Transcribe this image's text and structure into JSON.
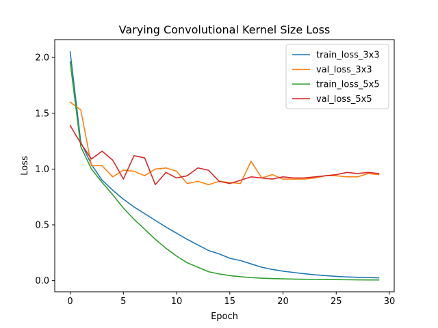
{
  "chart_data": {
    "type": "line",
    "title": "Varying Convolutional Kernel Size Loss",
    "xlabel": "Epoch",
    "ylabel": "Loss",
    "xlim": [
      -1.45,
      30.45
    ],
    "ylim": [
      -0.1,
      2.16
    ],
    "xticks": [
      0,
      5,
      10,
      15,
      20,
      25,
      30
    ],
    "xtick_labels": [
      "0",
      "5",
      "10",
      "15",
      "20",
      "25",
      "30"
    ],
    "yticks": [
      0.0,
      0.5,
      1.0,
      1.5,
      2.0
    ],
    "ytick_labels": [
      "0.0",
      "0.5",
      "1.0",
      "1.5",
      "2.0"
    ],
    "grid": false,
    "legend_position": "top-right",
    "x": [
      0,
      1,
      2,
      3,
      4,
      5,
      6,
      7,
      8,
      9,
      10,
      11,
      12,
      13,
      14,
      15,
      16,
      17,
      18,
      19,
      20,
      21,
      22,
      23,
      24,
      25,
      26,
      27,
      28,
      29
    ],
    "series": [
      {
        "name": "train_loss_3x3",
        "color": "#1f77b4",
        "values": [
          2.05,
          1.24,
          1.04,
          0.9,
          0.81,
          0.73,
          0.66,
          0.6,
          0.54,
          0.48,
          0.425,
          0.37,
          0.32,
          0.27,
          0.24,
          0.2,
          0.18,
          0.15,
          0.12,
          0.1,
          0.085,
          0.073,
          0.062,
          0.052,
          0.045,
          0.038,
          0.033,
          0.03,
          0.027,
          0.025
        ]
      },
      {
        "name": "val_loss_3x3",
        "color": "#ff7f0e",
        "values": [
          1.6,
          1.53,
          1.03,
          1.03,
          0.93,
          0.99,
          0.98,
          0.94,
          1.0,
          1.01,
          0.98,
          0.87,
          0.89,
          0.86,
          0.89,
          0.88,
          0.87,
          1.07,
          0.92,
          0.95,
          0.91,
          0.91,
          0.91,
          0.92,
          0.94,
          0.94,
          0.93,
          0.93,
          0.96,
          0.95
        ]
      },
      {
        "name": "train_loss_5x5",
        "color": "#2ca02c",
        "values": [
          1.96,
          1.2,
          1.0,
          0.88,
          0.77,
          0.65,
          0.55,
          0.46,
          0.37,
          0.29,
          0.22,
          0.16,
          0.12,
          0.08,
          0.06,
          0.045,
          0.035,
          0.027,
          0.022,
          0.018,
          0.016,
          0.014,
          0.012,
          0.011,
          0.01,
          0.009,
          0.008,
          0.007,
          0.006,
          0.006
        ]
      },
      {
        "name": "val_loss_5x5",
        "color": "#d62728",
        "values": [
          1.39,
          1.23,
          1.09,
          1.16,
          1.08,
          0.91,
          1.12,
          1.1,
          0.86,
          0.97,
          0.92,
          0.94,
          1.01,
          0.99,
          0.89,
          0.87,
          0.9,
          0.93,
          0.92,
          0.91,
          0.93,
          0.92,
          0.92,
          0.93,
          0.94,
          0.95,
          0.97,
          0.96,
          0.97,
          0.96
        ]
      }
    ]
  }
}
